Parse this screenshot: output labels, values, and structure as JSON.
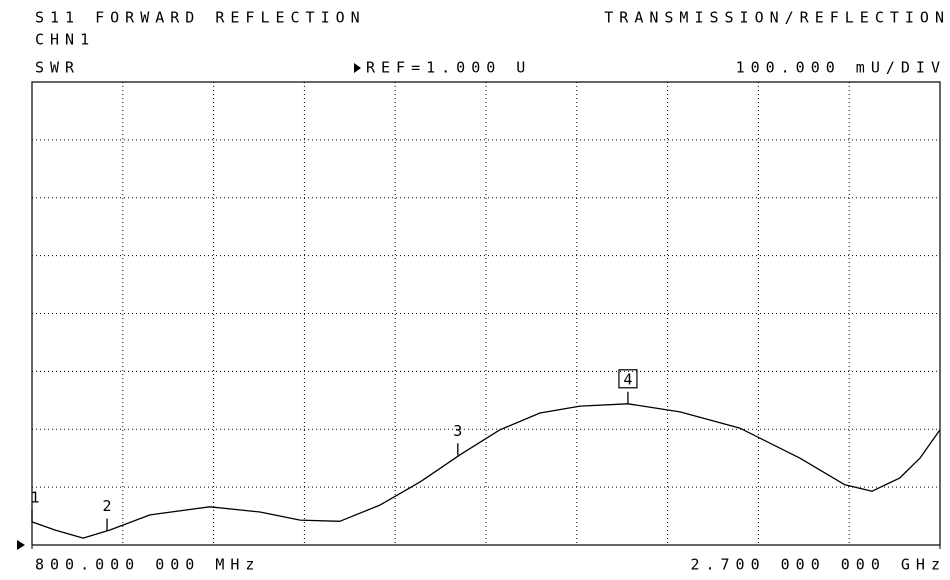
{
  "chart_data": {
    "type": "line",
    "title": "S11 FORWARD REFLECTION",
    "mode": "TRANSMISSION/REFLECTION",
    "channel": "CHN1",
    "format": "SWR",
    "reference": "REF=1.000 U",
    "scale": "100.000 mU/DIV",
    "x": [
      800,
      848,
      907,
      963,
      1047,
      1172,
      1277,
      1361,
      1444,
      1528,
      1612,
      1696,
      1779,
      1863,
      1947,
      2047,
      2156,
      2281,
      2407,
      2501,
      2558,
      2616,
      2658,
      2700
    ],
    "values": [
      1.04,
      1.026,
      1.012,
      1.026,
      1.052,
      1.066,
      1.057,
      1.043,
      1.041,
      1.069,
      1.109,
      1.156,
      1.199,
      1.228,
      1.24,
      1.244,
      1.23,
      1.202,
      1.15,
      1.104,
      1.093,
      1.116,
      1.15,
      1.199
    ],
    "color": "#000000",
    "xlim": [
      800,
      2700
    ],
    "xticks": [
      {
        "value": 800,
        "label": "800.000 000 MHz"
      },
      {
        "value": 2700,
        "label": "2.700 000 000 GHz"
      }
    ],
    "ylim": [
      1.0,
      1.8
    ],
    "markers": [
      {
        "label": "1",
        "x": 800,
        "y": 1.04
      },
      {
        "label": "2",
        "x": 957,
        "y": 1.025
      },
      {
        "label": "3",
        "x": 1691,
        "y": 1.155
      },
      {
        "label": "4",
        "x": 2047,
        "y": 1.244,
        "active": true
      }
    ]
  }
}
